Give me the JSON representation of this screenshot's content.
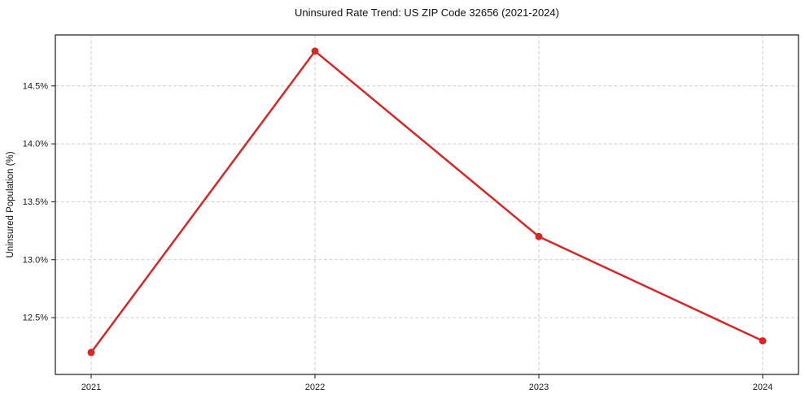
{
  "chart_data": {
    "type": "line",
    "title": "Uninsured Rate Trend: US ZIP Code 32656 (2021-2024)",
    "xlabel": "",
    "ylabel": "Uninsured Population (%)",
    "x": [
      2021,
      2022,
      2023,
      2024
    ],
    "xtick_labels": [
      "2021",
      "2022",
      "2023",
      "2024"
    ],
    "values": [
      12.2,
      14.8,
      13.2,
      12.3
    ],
    "yticks": [
      12.5,
      13.0,
      13.5,
      14.0,
      14.5
    ],
    "ytick_labels": [
      "12.5%",
      "13.0%",
      "13.5%",
      "14.0%",
      "14.5%"
    ],
    "xlim": [
      2020.84,
      2024.16
    ],
    "ylim": [
      12.01,
      14.94
    ],
    "grid": true,
    "grid_style": "dashed",
    "legend_position": "none",
    "colors": {
      "line": "#d62728",
      "marker": "#d62728",
      "grid": "#cccccc",
      "spine": "#1a1a1a",
      "text": "#1a1a1a",
      "background": "#ffffff"
    }
  }
}
